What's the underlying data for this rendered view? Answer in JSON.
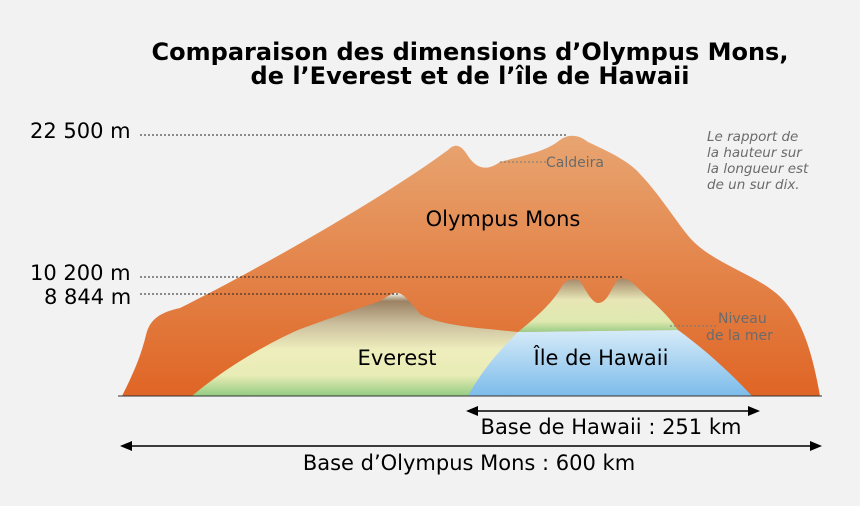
{
  "title": {
    "line1": "Comparaison des dimensions d’Olympus Mons,",
    "line2": "de l’Everest et de l’île de Hawaii"
  },
  "altitudes": {
    "olympus": "22 500 m",
    "hawaii": "10 200 m",
    "everest": "8 844 m"
  },
  "labels": {
    "olympus": "Olympus Mons",
    "everest": "Everest",
    "hawaii": "Île de Hawaii",
    "caldeira": "Caldeira",
    "sea_level_1": "Niveau",
    "sea_level_2": "de la mer"
  },
  "note": {
    "line1": "Le rapport de",
    "line2": "la hauteur sur",
    "line3": "la longueur est",
    "line4": "de un sur dix."
  },
  "bases": {
    "hawaii": "Base de Hawaii : 251 km",
    "olympus": "Base d’Olympus Mons : 600 km"
  },
  "colors": {
    "olympus_top": "#e7a06e",
    "olympus_bottom": "#e0692a",
    "hawaii_water_top": "#cfe6f7",
    "hawaii_water_bottom": "#7fbcea",
    "everest_green": "#9ccf86",
    "everest_cream": "#eeeebd",
    "everest_brown": "#9b8263"
  }
}
